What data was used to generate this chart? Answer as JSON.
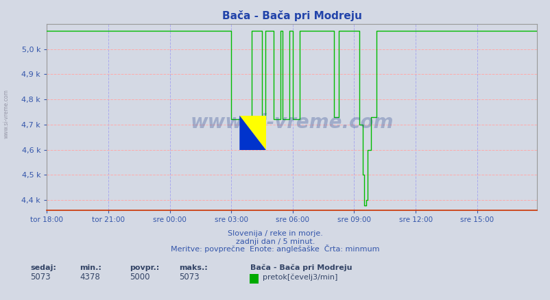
{
  "title": "Bača - Bača pri Modreju",
  "bg_color": "#d4d9e4",
  "plot_bg_color": "#d4d9e4",
  "line_color": "#00bb00",
  "grid_color_v": "#aaaaee",
  "grid_color_h": "#ffaaaa",
  "tick_color": "#3355aa",
  "title_color": "#2244aa",
  "y_min": 4360,
  "y_max": 5100,
  "y_ticks": [
    4400,
    4500,
    4600,
    4700,
    4800,
    4900,
    5000
  ],
  "x_tick_labels": [
    "tor 18:00",
    "tor 21:00",
    "sre 00:00",
    "sre 03:00",
    "sre 06:00",
    "sre 09:00",
    "sre 12:00",
    "sre 15:00"
  ],
  "x_tick_positions": [
    0,
    36,
    72,
    108,
    144,
    180,
    216,
    252
  ],
  "total_points": 288,
  "subtitle1": "Slovenija / reke in morje.",
  "subtitle2": "zadnji dan / 5 minut.",
  "subtitle3": "Meritve: povprečne  Enote: anglešaške  Črta: minmum",
  "legend_title": "Bača - Bača pri Modreju",
  "legend_label": "pretok[čevelj3/min]",
  "legend_color": "#00aa00",
  "stat_labels": [
    "sedaj:",
    "min.:",
    "povpr.:",
    "maks.:"
  ],
  "stat_values": [
    "5073",
    "4378",
    "5000",
    "5073"
  ],
  "watermark": "www.si-vreme.com",
  "left_label": "www.si-vreme.com"
}
